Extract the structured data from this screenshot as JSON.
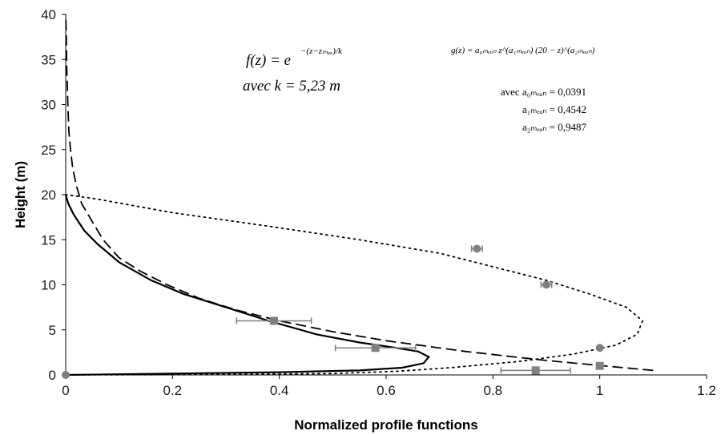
{
  "chart_data": {
    "type": "line",
    "xlabel": "Normalized profile functions",
    "ylabel": "Height (m)",
    "xlim": [
      0,
      1.2
    ],
    "ylim": [
      0,
      40
    ],
    "x_ticks": [
      "0",
      "0.2",
      "0.4",
      "0.6",
      "0.8",
      "1",
      "1.2"
    ],
    "y_ticks": [
      "0",
      "5",
      "10",
      "15",
      "20",
      "25",
      "30",
      "35",
      "40"
    ],
    "grid": false,
    "legend": "none",
    "series": [
      {
        "style": "solid",
        "color": "#000000",
        "points": [
          [
            0,
            0
          ],
          [
            0.2,
            0.15
          ],
          [
            0.4,
            0.3
          ],
          [
            0.55,
            0.5
          ],
          [
            0.63,
            0.8
          ],
          [
            0.67,
            1.3
          ],
          [
            0.68,
            2
          ],
          [
            0.66,
            2.6
          ],
          [
            0.62,
            3
          ],
          [
            0.55,
            3.6
          ],
          [
            0.47,
            4.5
          ],
          [
            0.38,
            6
          ],
          [
            0.3,
            7.5
          ],
          [
            0.22,
            9
          ],
          [
            0.16,
            10.5
          ],
          [
            0.1,
            12.5
          ],
          [
            0.06,
            14.5
          ],
          [
            0.035,
            16
          ],
          [
            0.015,
            17.8
          ],
          [
            0.005,
            19
          ],
          [
            0,
            20
          ]
        ]
      },
      {
        "style": "dashed",
        "color": "#000000",
        "points": [
          [
            1.1,
            0.5
          ],
          [
            0.9,
            1.6
          ],
          [
            0.75,
            2.6
          ],
          [
            0.6,
            3.8
          ],
          [
            0.5,
            4.8
          ],
          [
            0.4,
            6
          ],
          [
            0.32,
            7.2
          ],
          [
            0.25,
            8.5
          ],
          [
            0.19,
            10
          ],
          [
            0.14,
            11.5
          ],
          [
            0.1,
            13
          ],
          [
            0.07,
            15
          ],
          [
            0.05,
            17
          ],
          [
            0.03,
            19
          ],
          [
            0.02,
            21
          ],
          [
            0.013,
            23
          ],
          [
            0.009,
            25
          ],
          [
            0.006,
            27
          ],
          [
            0.004,
            30
          ],
          [
            0.002,
            34
          ],
          [
            0.001,
            38
          ],
          [
            0,
            40
          ]
        ]
      },
      {
        "style": "dotted",
        "color": "#000000",
        "points": [
          [
            0,
            0
          ],
          [
            0.3,
            0.05
          ],
          [
            0.5,
            0.15
          ],
          [
            0.62,
            0.4
          ],
          [
            0.72,
            0.8
          ],
          [
            0.85,
            1.5
          ],
          [
            0.95,
            2.3
          ],
          [
            1.03,
            3.3
          ],
          [
            1.07,
            4.5
          ],
          [
            1.08,
            6
          ],
          [
            1.05,
            7.5
          ],
          [
            0.98,
            9
          ],
          [
            0.9,
            10.5
          ],
          [
            0.8,
            12
          ],
          [
            0.7,
            13.5
          ],
          [
            0.55,
            15
          ],
          [
            0.38,
            16.5
          ],
          [
            0.2,
            18
          ],
          [
            0.06,
            19.5
          ],
          [
            0,
            20
          ]
        ]
      }
    ],
    "circle_points": [
      [
        0.77,
        14
      ],
      [
        0.9,
        10
      ],
      [
        1.0,
        3
      ],
      [
        0,
        0
      ]
    ],
    "circle_xerr": [
      0.01,
      0.01,
      0,
      0
    ],
    "square_points": [
      [
        0.39,
        6
      ],
      [
        0.58,
        3
      ],
      [
        0.88,
        0.5
      ],
      [
        1.0,
        1
      ]
    ],
    "square_xerr": [
      0.07,
      0.075,
      0.065,
      0
    ],
    "marker_color": "#808080",
    "annotations": {
      "f_eq": "f(z) = e",
      "f_exp": "−(z−zₘₐₓ)/k",
      "f_k": "avec k = 5,23 m",
      "g_eq": "g(z) = a₀ₘₑₐₙ z^(a₁ₘₑₐₙ) (20 − z)^(a₂ₘₑₐₙ)",
      "a0": "avec a₀ₘₑₐₙ = 0,0391",
      "a1": "a₁ₘₑₐₙ = 0,4542",
      "a2": "a₂ₘₑₐₙ = 0,9487"
    }
  }
}
